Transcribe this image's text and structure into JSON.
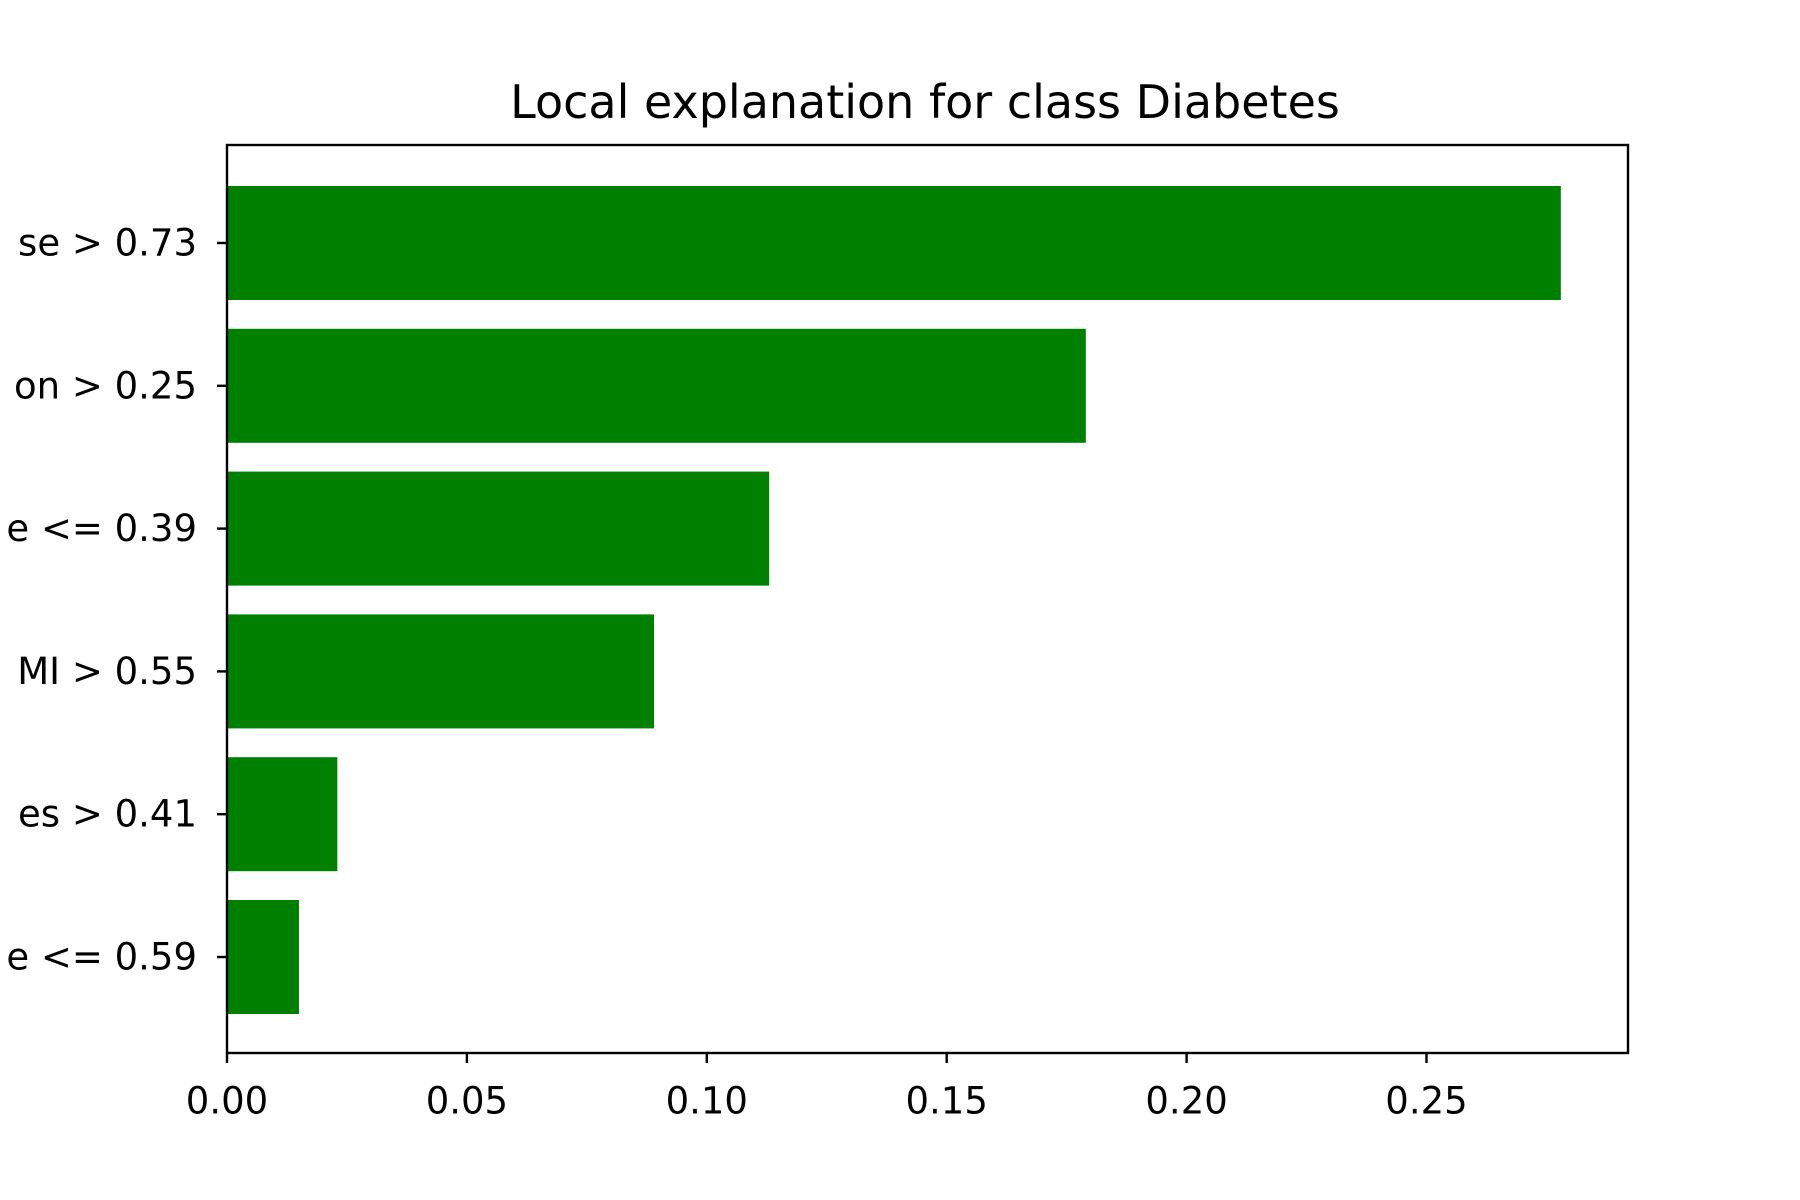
{
  "chart_data": {
    "type": "bar",
    "orientation": "horizontal",
    "title": "Local explanation for class Diabetes",
    "xlabel": "",
    "ylabel": "",
    "categories": [
      "se > 0.73",
      "on > 0.25",
      "e <= 0.39",
      "MI > 0.55",
      "es > 0.41",
      "e <= 0.59"
    ],
    "values": [
      0.278,
      0.179,
      0.113,
      0.089,
      0.023,
      0.015
    ],
    "xlim": [
      0,
      0.292
    ],
    "xticks": [
      0.0,
      0.05,
      0.1,
      0.15,
      0.2,
      0.25
    ],
    "xtick_labels": [
      "0.00",
      "0.05",
      "0.10",
      "0.15",
      "0.20",
      "0.25"
    ],
    "bar_color": "#008000",
    "grid": false,
    "legend": "none"
  }
}
